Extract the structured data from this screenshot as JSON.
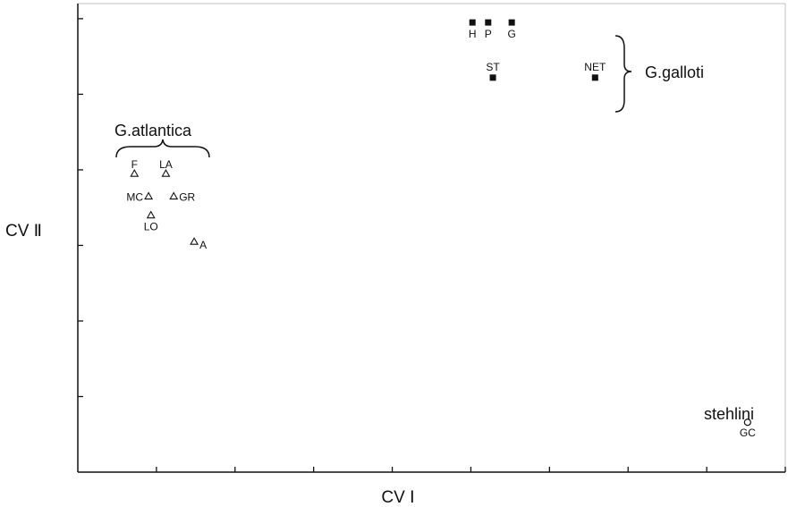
{
  "chart_data": {
    "type": "scatter",
    "title": "",
    "xlabel": "CV Ⅰ",
    "ylabel": "CV Ⅱ",
    "xlim": [
      0,
      9
    ],
    "ylim": [
      0,
      6.2
    ],
    "grid": false,
    "series": [
      {
        "marker": "triangle",
        "points": [
          {
            "x": 0.72,
            "y": 3.95,
            "label": "F"
          },
          {
            "x": 1.12,
            "y": 3.95,
            "label": "LA"
          },
          {
            "x": 0.9,
            "y": 3.65,
            "label": "MC"
          },
          {
            "x": 1.22,
            "y": 3.65,
            "label": "GR"
          },
          {
            "x": 0.93,
            "y": 3.4,
            "label": "LO"
          },
          {
            "x": 1.48,
            "y": 3.05,
            "label": "A"
          }
        ]
      },
      {
        "marker": "square",
        "points": [
          {
            "x": 5.02,
            "y": 5.95,
            "label": "H"
          },
          {
            "x": 5.22,
            "y": 5.95,
            "label": "P"
          },
          {
            "x": 5.52,
            "y": 5.95,
            "label": "G"
          },
          {
            "x": 5.28,
            "y": 5.22,
            "label": "ST"
          },
          {
            "x": 6.58,
            "y": 5.22,
            "label": "NET"
          }
        ]
      },
      {
        "marker": "circle",
        "points": [
          {
            "x": 8.52,
            "y": 0.66,
            "label": "GC"
          }
        ]
      }
    ],
    "annotations": [
      {
        "text": "G.atlantica"
      },
      {
        "text": "G.galloti"
      },
      {
        "text": "stehlini"
      }
    ]
  }
}
